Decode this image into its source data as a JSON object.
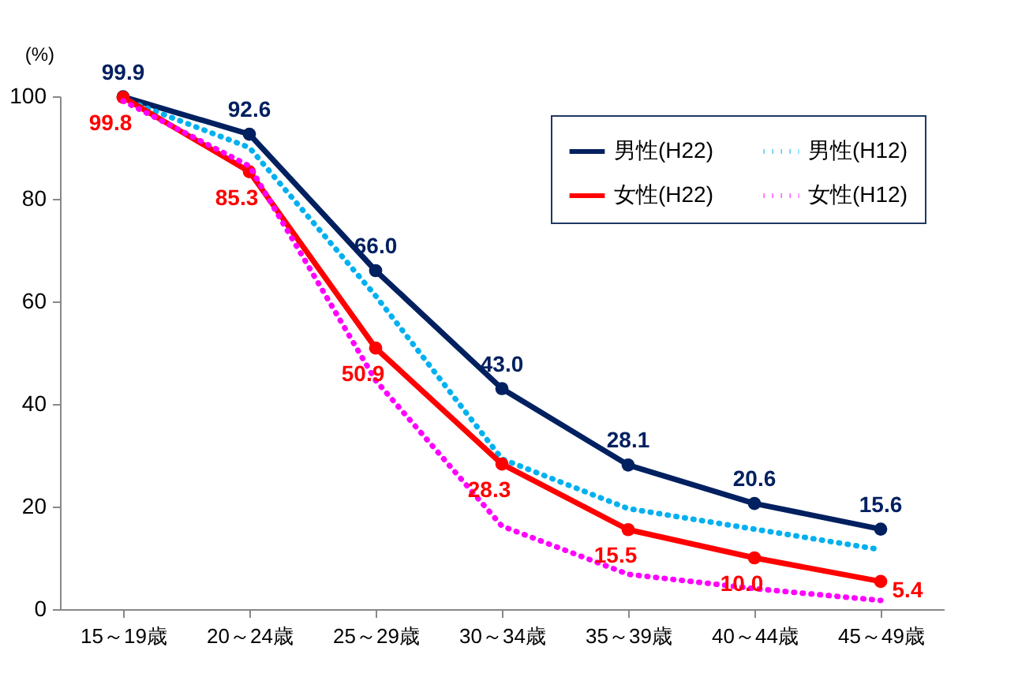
{
  "chart_data": {
    "type": "line",
    "ylabel": "(%)",
    "categories": [
      "15～19歳",
      "20～24歳",
      "25～29歳",
      "30～34歳",
      "35～39歳",
      "40～44歳",
      "45～49歳"
    ],
    "ylim": [
      0,
      100
    ],
    "yticks": [
      0,
      20,
      40,
      60,
      80,
      100
    ],
    "grid": false,
    "legend": "top right",
    "series": [
      {
        "name": "男性(H22)",
        "color": "#002060",
        "marker": "circle",
        "line_style": "solid",
        "values": [
          99.9,
          92.6,
          66.0,
          43.0,
          28.1,
          20.6,
          15.6
        ],
        "value_labels": [
          "99.9",
          "92.6",
          "66.0",
          "43.0",
          "28.1",
          "20.6",
          "15.6"
        ]
      },
      {
        "name": "男性(H12)",
        "color": "#00b0f0",
        "marker": "none",
        "line_style": "dotted",
        "values": [
          99.5,
          90.0,
          61.1,
          29.3,
          19.6,
          15.6,
          11.6
        ]
      },
      {
        "name": "女性(H22)",
        "color": "#ff0000",
        "marker": "circle",
        "line_style": "solid",
        "values": [
          99.8,
          85.3,
          50.9,
          28.3,
          15.5,
          10.0,
          5.4
        ],
        "value_labels": [
          "99.8",
          "85.3",
          "50.9",
          "28.3",
          "15.5",
          "10.0",
          "5.4"
        ]
      },
      {
        "name": "女性(H12)",
        "color": "#ff00ff",
        "marker": "none",
        "line_style": "dotted",
        "values": [
          99.1,
          86.4,
          44.6,
          16.2,
          6.8,
          4.0,
          1.7
        ]
      }
    ]
  }
}
